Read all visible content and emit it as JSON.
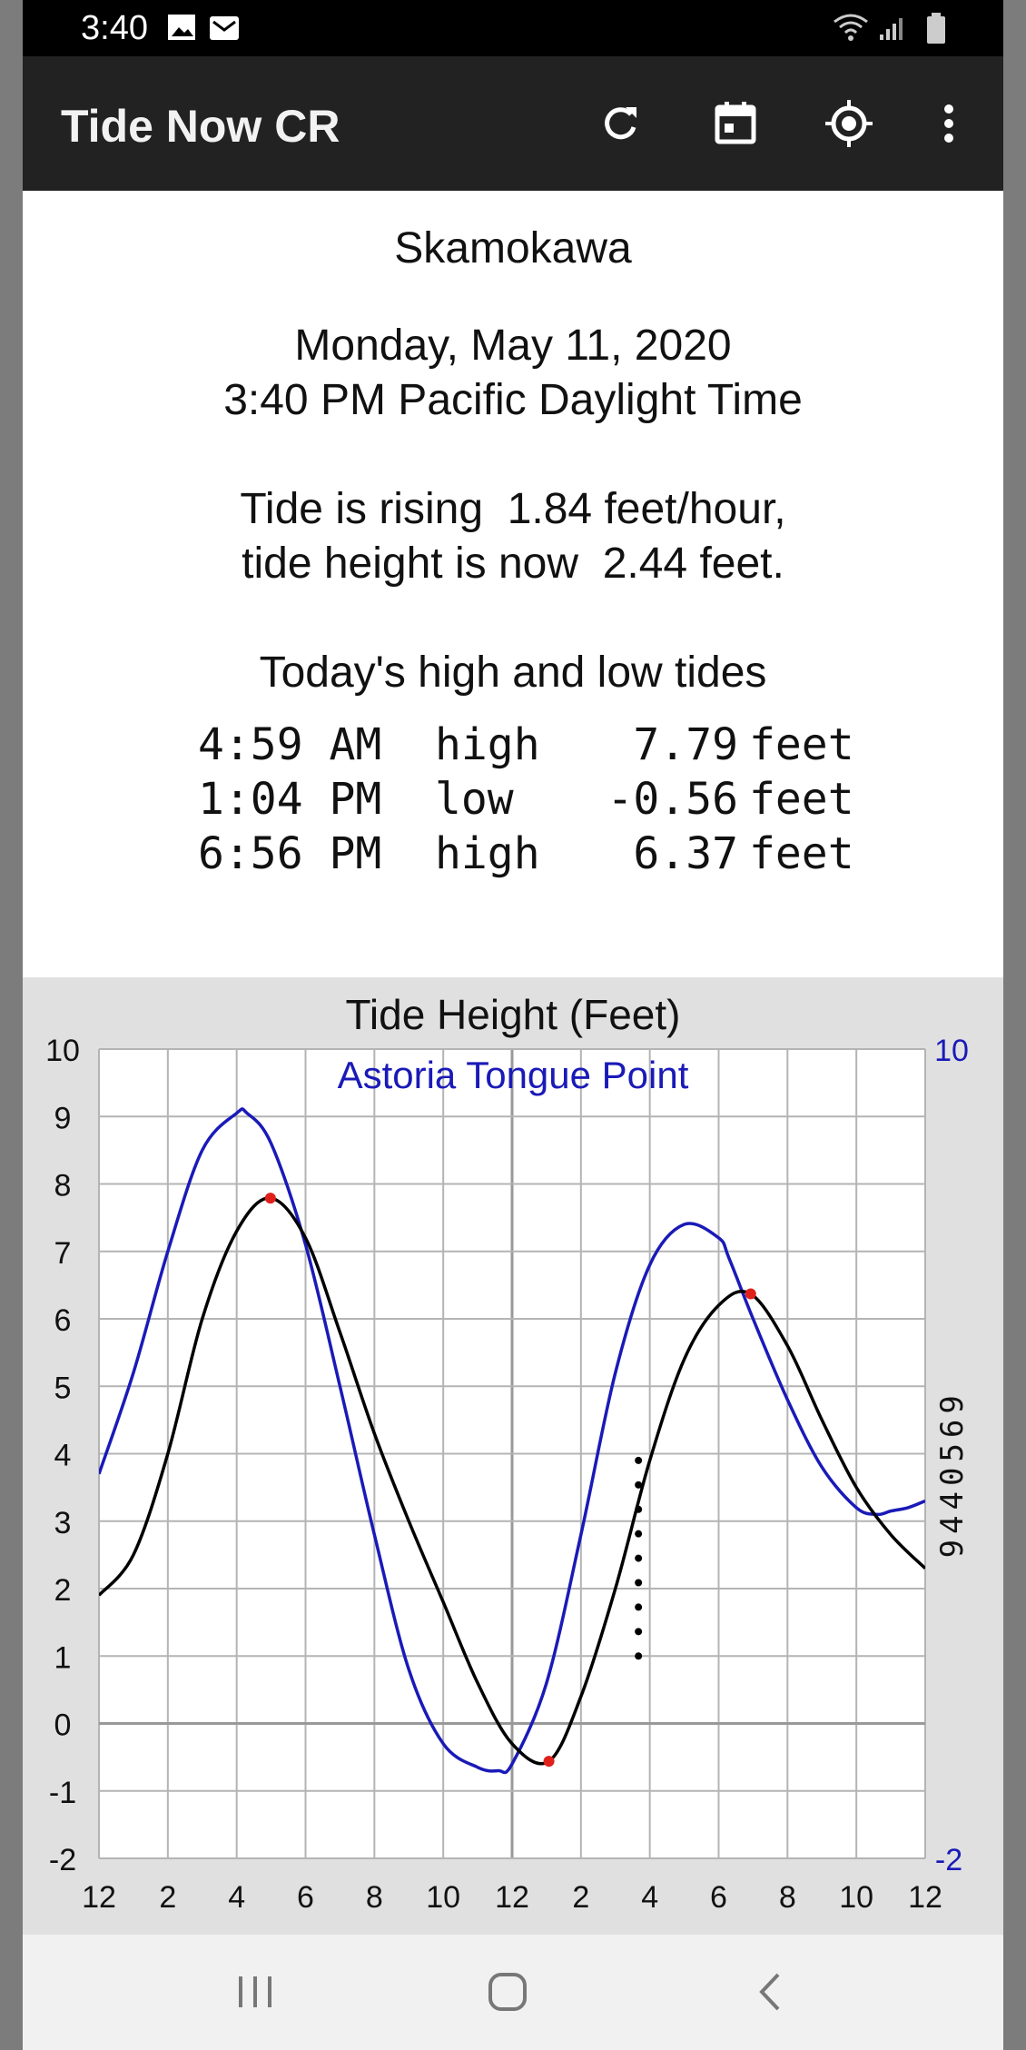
{
  "status_bar": {
    "time": "3:40",
    "icons": [
      "image-icon",
      "mail-icon",
      "wifi-icon",
      "signal-icon",
      "battery-icon"
    ]
  },
  "app_bar": {
    "title": "Tide Now CR",
    "actions": [
      "refresh-icon",
      "calendar-icon",
      "location-icon",
      "more-vert-icon"
    ]
  },
  "info": {
    "station": "Skamokawa",
    "date": "Monday, May 11, 2020",
    "time": "3:40 PM Pacific Daylight Time",
    "rate_line": "Tide is rising  1.84 feet/hour,",
    "height_line": "tide height is now  2.44 feet.",
    "tides_heading": "Today's high and low tides",
    "tides": [
      {
        "time": "4:59 AM",
        "type": "high",
        "height": "7.79",
        "unit": "feet"
      },
      {
        "time": "1:04 PM",
        "type": "low",
        "height": "-0.56",
        "unit": "feet"
      },
      {
        "time": "6:56 PM",
        "type": "high",
        "height": "6.37",
        "unit": "feet"
      }
    ]
  },
  "chart_data": {
    "type": "line",
    "title": "Tide Height (Feet)",
    "subtitle": "Astoria Tongue Point",
    "right_axis_label": "9440569",
    "y_left_ticks": [
      "10",
      "9",
      "8",
      "7",
      "6",
      "5",
      "4",
      "3",
      "2",
      "1",
      "0",
      "-1",
      "-2"
    ],
    "y_right_ticks": [
      "10",
      "-2"
    ],
    "x_ticks": [
      "12",
      "2",
      "4",
      "6",
      "8",
      "10",
      "12",
      "2",
      "4",
      "6",
      "8",
      "10",
      "12"
    ],
    "xlim_hours": [
      0,
      24
    ],
    "ylim": [
      -2,
      10
    ],
    "grid": true,
    "colors": {
      "local": "#000000",
      "reference": "#1a1ab8",
      "extrema": "#e0201a",
      "grid": "#b4b4b4",
      "right_labels": "#1a1ab8"
    },
    "series": [
      {
        "x": [
          0,
          1,
          2,
          3,
          4,
          4.98,
          6,
          7,
          8,
          9,
          10,
          11,
          12,
          13.07,
          14,
          15,
          16,
          17,
          18,
          18.93,
          20,
          21,
          22,
          23,
          24
        ],
        "y": [
          1.9,
          2.5,
          4.0,
          6.0,
          7.3,
          7.79,
          7.2,
          5.8,
          4.3,
          3.0,
          1.8,
          0.6,
          -0.3,
          -0.56,
          0.4,
          2.0,
          3.9,
          5.4,
          6.2,
          6.37,
          5.6,
          4.5,
          3.5,
          2.8,
          2.3
        ]
      },
      {
        "x": [
          0,
          1,
          2,
          3,
          4,
          4.3,
          5,
          6,
          7,
          8,
          9,
          10,
          11,
          11.6,
          12,
          13,
          14,
          15,
          16,
          17,
          18,
          18.3,
          19,
          20,
          21,
          22,
          22.6,
          23,
          23.5,
          24
        ],
        "y": [
          3.7,
          5.2,
          7.0,
          8.5,
          9.05,
          9.05,
          8.6,
          7.1,
          5.0,
          2.8,
          0.8,
          -0.3,
          -0.65,
          -0.7,
          -0.6,
          0.6,
          2.8,
          5.2,
          6.8,
          7.4,
          7.2,
          6.9,
          6.0,
          4.8,
          3.8,
          3.2,
          3.1,
          3.15,
          3.2,
          3.3
        ]
      }
    ],
    "extrema_points": [
      {
        "x": 4.98,
        "y": 7.79
      },
      {
        "x": 13.07,
        "y": -0.56
      },
      {
        "x": 18.93,
        "y": 6.37
      }
    ],
    "now_marker": {
      "x": 15.67,
      "y_start": 1.0,
      "y_end": 3.9
    }
  },
  "nav_bar": {
    "buttons": [
      "recents-icon",
      "home-icon",
      "back-icon"
    ]
  }
}
